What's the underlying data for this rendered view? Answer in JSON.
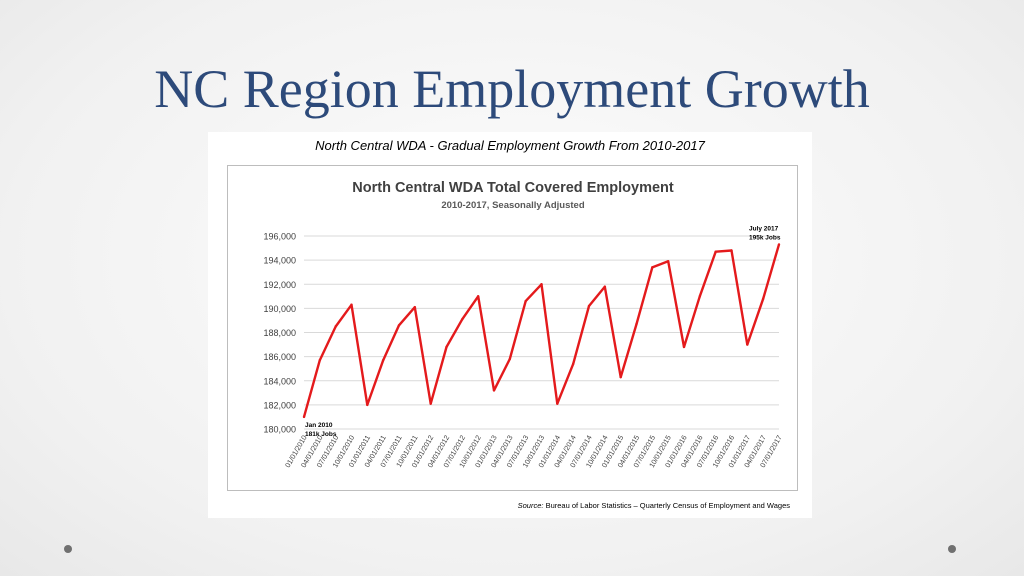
{
  "slide": {
    "title": "NC Region Employment Growth",
    "caption": "North Central WDA - Gradual Employment Growth From 2010-2017",
    "source_label": "Source:",
    "source_text": "Bureau of Labor Statistics – Quarterly Census of Employment and Wages"
  },
  "colors": {
    "title": "#2d4a7a",
    "line": "#e41a1c",
    "grid": "#d9d9d9",
    "axis_text": "#404040"
  },
  "chart_data": {
    "type": "line",
    "title": "North Central WDA Total Covered Employment",
    "subtitle": "2010-2017, Seasonally Adjusted",
    "xlabel": "",
    "ylabel": "",
    "ylim": [
      180000,
      196000
    ],
    "yticks": [
      180000,
      182000,
      184000,
      186000,
      188000,
      190000,
      192000,
      194000,
      196000
    ],
    "ytick_labels": [
      "180,000",
      "182,000",
      "184,000",
      "186,000",
      "188,000",
      "190,000",
      "192,000",
      "194,000",
      "196,000"
    ],
    "grid": true,
    "legend": "none",
    "categories": [
      "01/01/2010",
      "04/01/2010",
      "07/01/2010",
      "10/01/2010",
      "01/01/2011",
      "04/01/2011",
      "07/01/2011",
      "10/01/2011",
      "01/01/2012",
      "04/01/2012",
      "07/01/2012",
      "10/01/2012",
      "01/01/2013",
      "04/01/2013",
      "07/01/2013",
      "10/01/2013",
      "01/01/2014",
      "04/01/2014",
      "07/01/2014",
      "10/01/2014",
      "01/01/2015",
      "04/01/2015",
      "07/01/2015",
      "10/01/2015",
      "01/01/2016",
      "04/01/2016",
      "07/01/2016",
      "10/01/2016",
      "01/01/2017",
      "04/01/2017",
      "07/01/2017"
    ],
    "series": [
      {
        "values": [
          181000,
          185700,
          188500,
          190300,
          182000,
          185700,
          188600,
          190100,
          182100,
          186800,
          189100,
          191000,
          183200,
          185800,
          190600,
          192000,
          182100,
          185400,
          190200,
          191800,
          184300,
          188700,
          193400,
          193900,
          186800,
          191000,
          194700,
          194800,
          187000,
          190800,
          195300
        ]
      }
    ],
    "annotations": [
      {
        "id": "start",
        "category": "01/01/2010",
        "lines": [
          "Jan 2010",
          "181k Jobs"
        ]
      },
      {
        "id": "end",
        "category": "07/01/2017",
        "lines": [
          "July 2017",
          "195k Jobs"
        ]
      }
    ]
  }
}
